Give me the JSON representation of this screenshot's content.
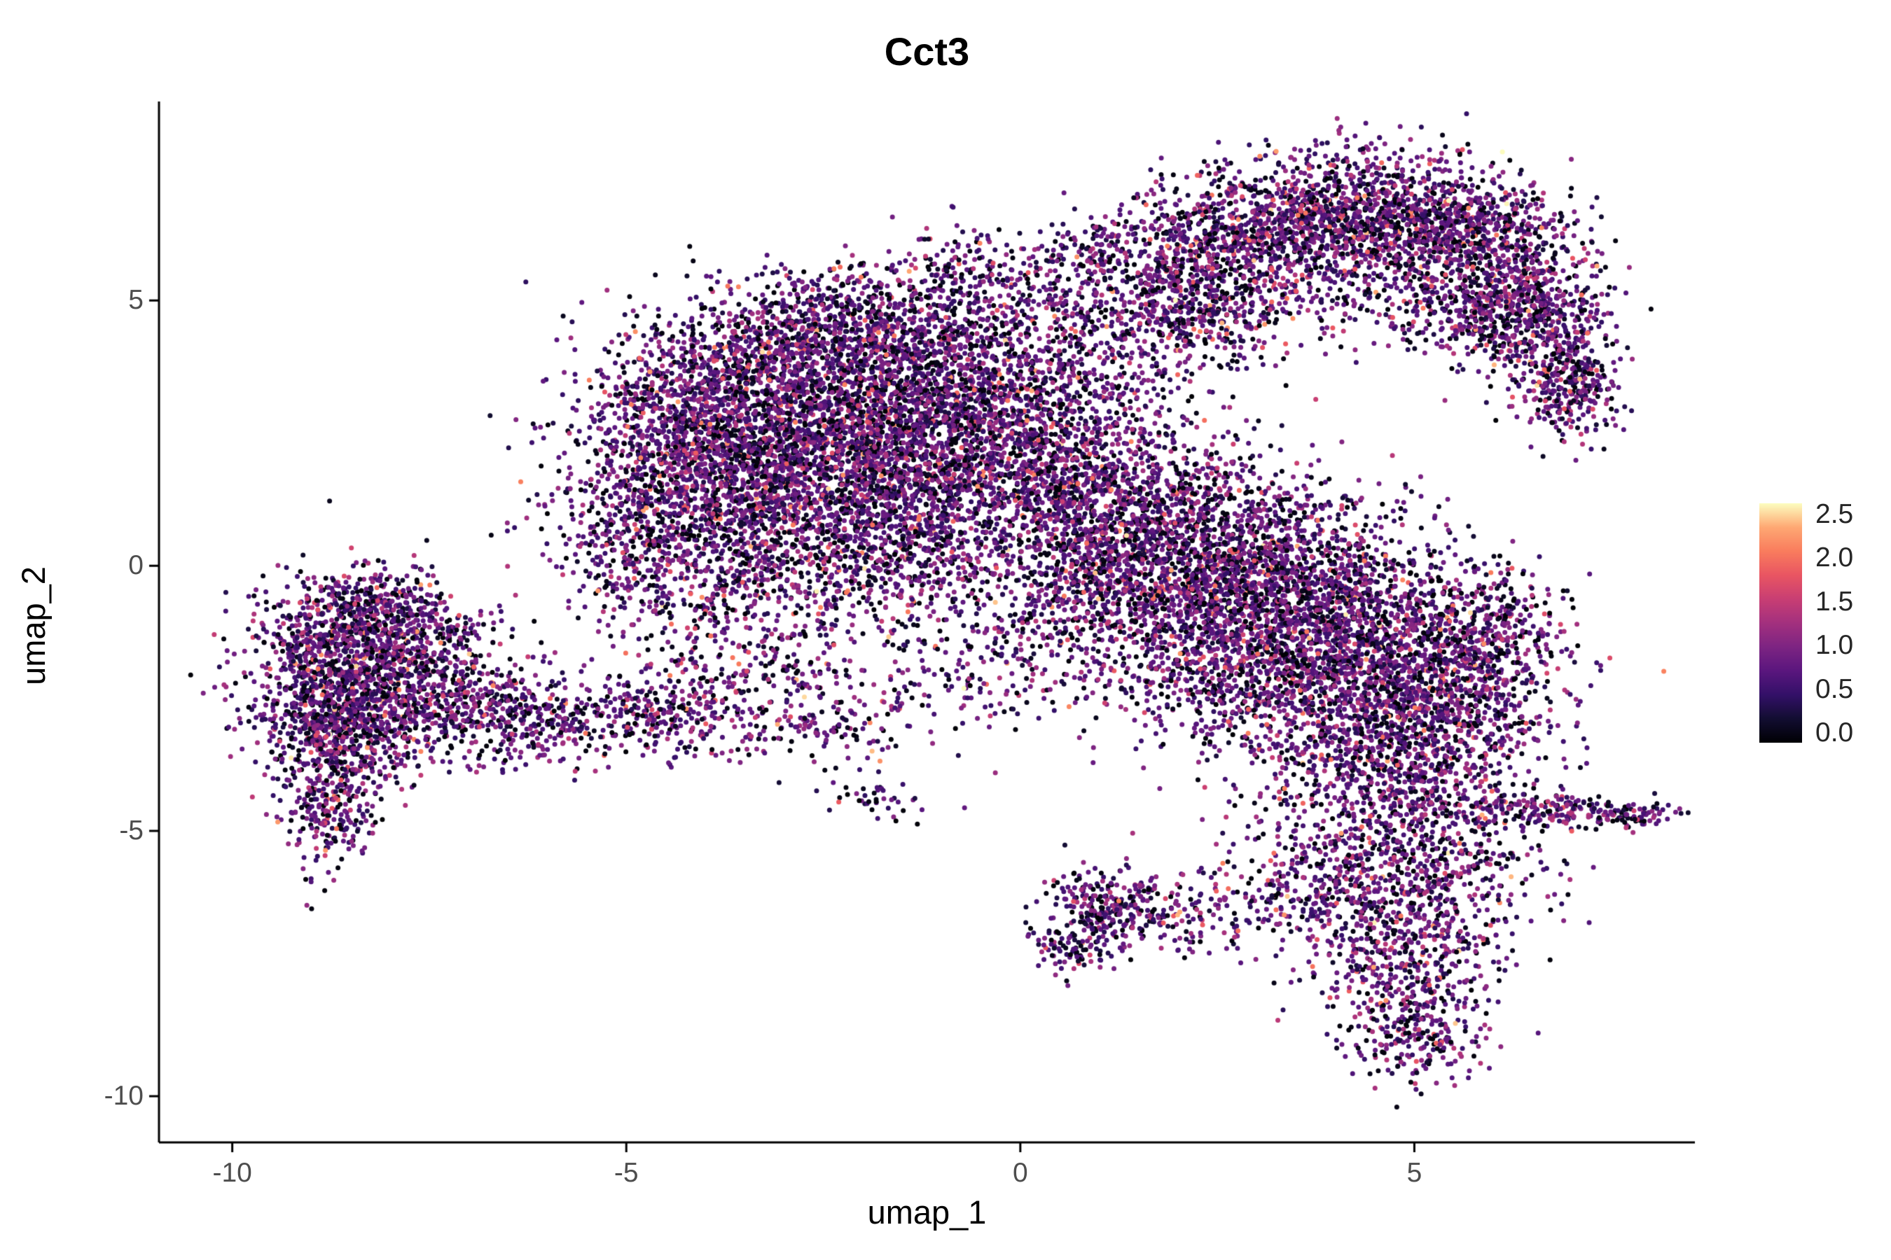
{
  "chart_data": {
    "type": "scatter",
    "title": "Cct3",
    "xlabel": "umap_1",
    "ylabel": "umap_2",
    "x_ticks": [
      "-10",
      "-5",
      "0",
      "5"
    ],
    "y_ticks": [
      "5",
      "0",
      "-5",
      "-10"
    ],
    "xlim": [
      -10.93,
      8.56
    ],
    "ylim": [
      -10.87,
      8.75
    ],
    "grid": false,
    "legend_position": "right",
    "point_radius_px": 3.5,
    "seed": 42,
    "colorbar": {
      "vmin": 0.0,
      "vmax": 2.5,
      "ticks": [
        "2.5",
        "2.0",
        "1.5",
        "1.0",
        "0.5",
        "0.0"
      ],
      "colormap": "magma",
      "stops": [
        [
          "0.0",
          "#000004"
        ],
        [
          "0.1",
          "#120d31"
        ],
        [
          "0.2",
          "#331068"
        ],
        [
          "0.3",
          "#5a167e"
        ],
        [
          "0.4",
          "#7d2482"
        ],
        [
          "0.5",
          "#a3307e"
        ],
        [
          "0.6",
          "#c83e73"
        ],
        [
          "0.7",
          "#e95562"
        ],
        [
          "0.8",
          "#f97c5d"
        ],
        [
          "0.9",
          "#fea873"
        ],
        [
          "1.0",
          "#fcfdbf"
        ]
      ]
    },
    "value_distribution": {
      "zero_frac": 0.2,
      "zero_jitter": 0.15,
      "mid_scale": 0.75,
      "hot_frac": 0.1,
      "hot_min": 0.5,
      "hot_range": 0.7
    },
    "clusters": [
      {
        "x": -8.8,
        "y": -2.1,
        "sx": 0.55,
        "sy": 0.85,
        "n": 800
      },
      {
        "x": -7.9,
        "y": -1.5,
        "sx": 0.65,
        "sy": 0.65,
        "n": 600
      },
      {
        "x": -8.5,
        "y": -3.2,
        "sx": 0.5,
        "sy": 0.6,
        "n": 420
      },
      {
        "x": -8.75,
        "y": -4.6,
        "sx": 0.28,
        "sy": 0.6,
        "n": 240
      },
      {
        "x": -7.3,
        "y": -2.5,
        "sx": 0.6,
        "sy": 0.55,
        "n": 330
      },
      {
        "x": -6.4,
        "y": -2.9,
        "sx": 0.55,
        "sy": 0.45,
        "n": 220
      },
      {
        "x": -5.3,
        "y": -2.8,
        "sx": 0.75,
        "sy": 0.45,
        "n": 200
      },
      {
        "x": -4.4,
        "y": -3.0,
        "sx": 0.6,
        "sy": 0.4,
        "n": 150
      },
      {
        "x": -8.2,
        "y": -0.9,
        "sx": 0.5,
        "sy": 0.4,
        "n": 250
      },
      {
        "x": -2.6,
        "y": 2.6,
        "sx": 1.25,
        "sy": 1.15,
        "n": 2000
      },
      {
        "x": -3.8,
        "y": 1.3,
        "sx": 0.9,
        "sy": 1.0,
        "n": 1100
      },
      {
        "x": -1.3,
        "y": 3.8,
        "sx": 1.0,
        "sy": 0.85,
        "n": 1000
      },
      {
        "x": -1.6,
        "y": 1.6,
        "sx": 1.0,
        "sy": 0.95,
        "n": 950
      },
      {
        "x": -4.3,
        "y": 2.7,
        "sx": 0.7,
        "sy": 0.8,
        "n": 550
      },
      {
        "x": -0.3,
        "y": 2.7,
        "sx": 0.8,
        "sy": 0.9,
        "n": 650
      },
      {
        "x": -2.9,
        "y": -0.2,
        "sx": 1.1,
        "sy": 0.65,
        "n": 450
      },
      {
        "x": -4.9,
        "y": 0.3,
        "sx": 0.5,
        "sy": 0.8,
        "n": 240
      },
      {
        "x": -2.3,
        "y": 4.8,
        "sx": 0.9,
        "sy": 0.45,
        "n": 380
      },
      {
        "x": -0.9,
        "y": 0.3,
        "sx": 0.7,
        "sy": 0.6,
        "n": 300
      },
      {
        "x": -3.5,
        "y": 3.9,
        "sx": 0.7,
        "sy": 0.5,
        "n": 350
      },
      {
        "x": -3.3,
        "y": -2.0,
        "sx": 0.8,
        "sy": 0.7,
        "n": 280
      },
      {
        "x": -2.4,
        "y": -3.0,
        "sx": 0.5,
        "sy": 0.4,
        "n": 110
      },
      {
        "x": -0.8,
        "y": -1.8,
        "sx": 0.8,
        "sy": 0.7,
        "n": 140
      },
      {
        "x": 0.4,
        "y": 1.9,
        "sx": 0.7,
        "sy": 0.8,
        "n": 260
      },
      {
        "x": 1.2,
        "y": 3.3,
        "sx": 0.7,
        "sy": 0.9,
        "n": 250
      },
      {
        "x": 0.3,
        "y": 4.9,
        "sx": 0.6,
        "sy": 0.6,
        "n": 170
      },
      {
        "x": -0.6,
        "y": 5.6,
        "sx": 0.5,
        "sy": 0.4,
        "n": 110
      },
      {
        "x": 0.9,
        "y": 6.0,
        "sx": 0.4,
        "sy": 0.35,
        "n": 70
      },
      {
        "x": 1.9,
        "y": 5.3,
        "sx": 0.7,
        "sy": 0.7,
        "n": 480
      },
      {
        "x": 2.9,
        "y": 6.1,
        "sx": 0.8,
        "sy": 0.65,
        "n": 720
      },
      {
        "x": 4.1,
        "y": 6.7,
        "sx": 0.9,
        "sy": 0.55,
        "n": 830
      },
      {
        "x": 5.3,
        "y": 6.4,
        "sx": 0.75,
        "sy": 0.55,
        "n": 640
      },
      {
        "x": 6.2,
        "y": 5.5,
        "sx": 0.5,
        "sy": 0.7,
        "n": 440
      },
      {
        "x": 6.8,
        "y": 4.3,
        "sx": 0.4,
        "sy": 0.7,
        "n": 340
      },
      {
        "x": 7.0,
        "y": 3.2,
        "sx": 0.3,
        "sy": 0.45,
        "n": 200
      },
      {
        "x": 5.1,
        "y": 5.1,
        "sx": 0.85,
        "sy": 0.5,
        "n": 260
      },
      {
        "x": 2.4,
        "y": 4.6,
        "sx": 0.5,
        "sy": 0.4,
        "n": 190
      },
      {
        "x": 6.0,
        "y": 4.6,
        "sx": 0.5,
        "sy": 0.4,
        "n": 210
      },
      {
        "x": 1.5,
        "y": 0.9,
        "sx": 0.9,
        "sy": 0.8,
        "n": 780
      },
      {
        "x": 2.6,
        "y": 0.1,
        "sx": 1.0,
        "sy": 0.9,
        "n": 1050
      },
      {
        "x": 3.7,
        "y": -0.8,
        "sx": 1.0,
        "sy": 0.9,
        "n": 1150
      },
      {
        "x": 4.7,
        "y": -1.9,
        "sx": 0.9,
        "sy": 0.85,
        "n": 980
      },
      {
        "x": 5.4,
        "y": -3.0,
        "sx": 0.7,
        "sy": 0.8,
        "n": 640
      },
      {
        "x": 1.1,
        "y": -0.3,
        "sx": 0.6,
        "sy": 0.7,
        "n": 370
      },
      {
        "x": 2.1,
        "y": -1.4,
        "sx": 0.8,
        "sy": 0.7,
        "n": 440
      },
      {
        "x": 3.1,
        "y": -2.4,
        "sx": 0.8,
        "sy": 0.7,
        "n": 410
      },
      {
        "x": 4.3,
        "y": -3.8,
        "sx": 0.75,
        "sy": 0.6,
        "n": 410
      },
      {
        "x": 0.6,
        "y": 1.5,
        "sx": 0.5,
        "sy": 0.5,
        "n": 210
      },
      {
        "x": 5.9,
        "y": -1.2,
        "sx": 0.5,
        "sy": 0.6,
        "n": 290
      },
      {
        "x": 0.0,
        "y": -1.6,
        "sx": 0.7,
        "sy": 0.7,
        "n": 110
      },
      {
        "x": 5.0,
        "y": -5.3,
        "sx": 0.9,
        "sy": 0.6,
        "n": 440
      },
      {
        "x": 4.8,
        "y": -6.6,
        "sx": 0.8,
        "sy": 0.7,
        "n": 440
      },
      {
        "x": 4.9,
        "y": -7.9,
        "sx": 0.55,
        "sy": 0.7,
        "n": 320
      },
      {
        "x": 5.1,
        "y": -9.0,
        "sx": 0.4,
        "sy": 0.4,
        "n": 150
      },
      {
        "x": 3.6,
        "y": -6.1,
        "sx": 0.6,
        "sy": 0.5,
        "n": 210
      },
      {
        "x": 6.6,
        "y": -4.6,
        "sx": 0.7,
        "sy": 0.18,
        "n": 190
      },
      {
        "x": 7.6,
        "y": -4.7,
        "sx": 0.35,
        "sy": 0.12,
        "n": 80
      },
      {
        "x": 1.0,
        "y": -6.4,
        "sx": 0.35,
        "sy": 0.4,
        "n": 220
      },
      {
        "x": 1.9,
        "y": -6.6,
        "sx": 0.45,
        "sy": 0.35,
        "n": 150
      },
      {
        "x": 0.6,
        "y": -7.2,
        "sx": 0.25,
        "sy": 0.25,
        "n": 80
      },
      {
        "x": -1.8,
        "y": -4.4,
        "sx": 0.3,
        "sy": 0.2,
        "n": 40
      }
    ]
  }
}
